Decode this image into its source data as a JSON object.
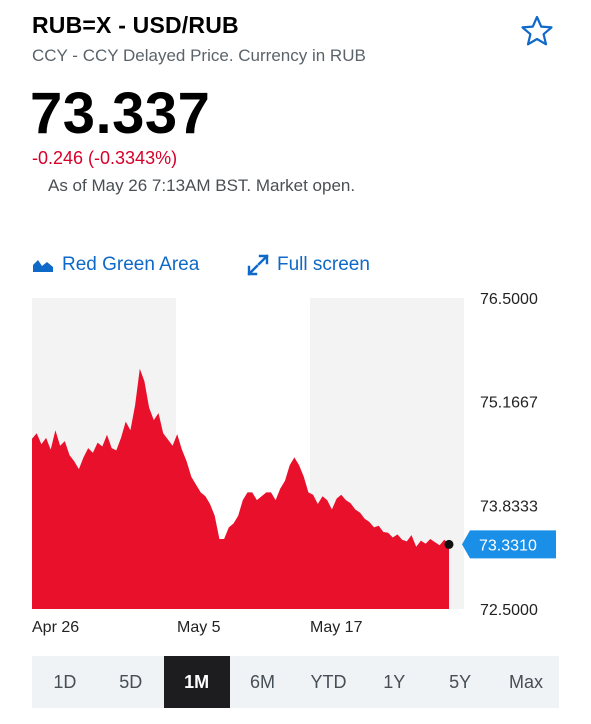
{
  "header": {
    "symbol": "RUB=X - USD/RUB",
    "subtitle": "CCY - CCY Delayed Price. Currency in RUB",
    "price": "73.337",
    "change": "-0.246 (-0.3343%)",
    "as_of": "As of May 26 7:13AM BST. Market open."
  },
  "toolbar": {
    "chart_type_label": "Red Green Area",
    "fullscreen_label": "Full screen"
  },
  "colors": {
    "accent": "#0f69c8",
    "negative": "#d6002a",
    "area_fill": "#e8102a",
    "current_badge": "#1a8fe8"
  },
  "icons": {
    "watchlist": "star-icon",
    "chart_type": "area-chart-icon",
    "fullscreen": "expand-icon"
  },
  "ranges": {
    "items": [
      "1D",
      "5D",
      "1M",
      "6M",
      "YTD",
      "1Y",
      "5Y",
      "Max"
    ],
    "selected": "1M"
  },
  "chart_data": {
    "type": "area",
    "x_tick_labels": [
      "Apr 26",
      "May 5",
      "May 17"
    ],
    "y_tick_labels": [
      "76.5000",
      "75.1667",
      "73.8333",
      "72.5000"
    ],
    "ylim": [
      72.5,
      76.5
    ],
    "current_label": "73.3310",
    "current_value": 73.331,
    "grid": "alternating vertical bands",
    "series": [
      {
        "values": [
          74.69,
          74.76,
          74.62,
          74.7,
          74.55,
          74.8,
          74.6,
          74.66,
          74.48,
          74.4,
          74.3,
          74.45,
          74.57,
          74.51,
          74.64,
          74.59,
          74.74,
          74.57,
          74.54,
          74.7,
          74.91,
          74.8,
          75.12,
          75.59,
          75.43,
          75.09,
          74.93,
          75.02,
          74.76,
          74.68,
          74.6,
          74.75,
          74.55,
          74.4,
          74.2,
          74.1,
          74.0,
          73.95,
          73.85,
          73.7,
          73.4,
          73.4,
          73.55,
          73.6,
          73.7,
          73.9,
          74.0,
          74.0,
          73.9,
          73.95,
          74.0,
          74.0,
          73.9,
          74.05,
          74.15,
          74.35,
          74.45,
          74.35,
          74.2,
          74.0,
          73.97,
          73.85,
          73.95,
          73.9,
          73.78,
          73.92,
          73.97,
          73.9,
          73.86,
          73.78,
          73.74,
          73.66,
          73.62,
          73.55,
          73.57,
          73.49,
          73.48,
          73.42,
          73.46,
          73.39,
          73.37,
          73.45,
          73.3,
          73.38,
          73.34,
          73.4,
          73.36,
          73.32,
          73.39,
          73.33
        ]
      }
    ]
  }
}
